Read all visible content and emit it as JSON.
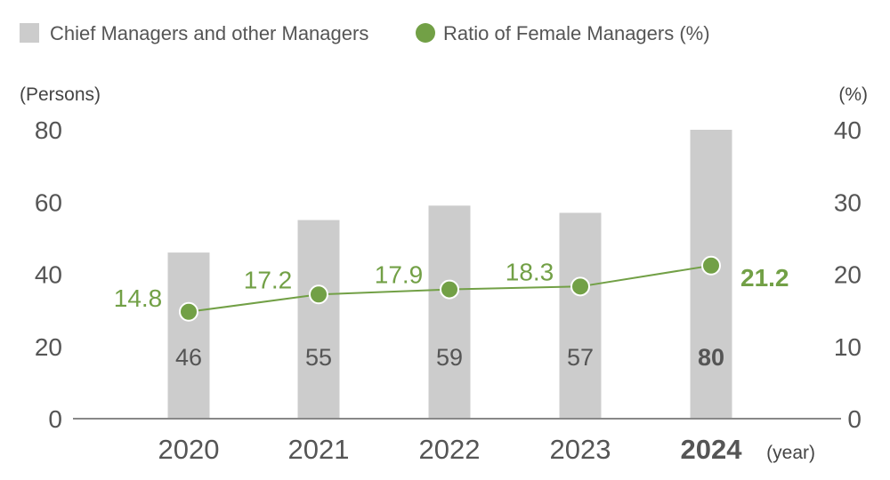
{
  "chart_data": {
    "type": "bar",
    "categories": [
      "2020",
      "2021",
      "2022",
      "2023",
      "2024"
    ],
    "highlight_category": "2024",
    "x_unit_label": "(year)",
    "series": [
      {
        "name": "Chief Managers and other Managers",
        "type": "bar",
        "axis": "left",
        "values": [
          46,
          55,
          59,
          57,
          80
        ],
        "labels": [
          "46",
          "55",
          "59",
          "57",
          "80"
        ],
        "color": "#cccccc"
      },
      {
        "name": "Ratio of Female Managers (%)",
        "type": "line",
        "axis": "right",
        "values": [
          14.8,
          17.2,
          17.9,
          18.3,
          21.2
        ],
        "labels": [
          "14.8",
          "17.2",
          "17.9",
          "18.3",
          "21.2"
        ],
        "color": "#72a046"
      }
    ],
    "left_axis": {
      "unit_label": "(Persons)",
      "ylim": [
        0,
        80
      ],
      "ticks": [
        "0",
        "20",
        "40",
        "60",
        "80"
      ]
    },
    "right_axis": {
      "unit_label": "(%)",
      "ylim": [
        0,
        40
      ],
      "ticks": [
        "0",
        "10",
        "20",
        "30",
        "40"
      ]
    },
    "grid": false,
    "legend_position": "top-left"
  }
}
